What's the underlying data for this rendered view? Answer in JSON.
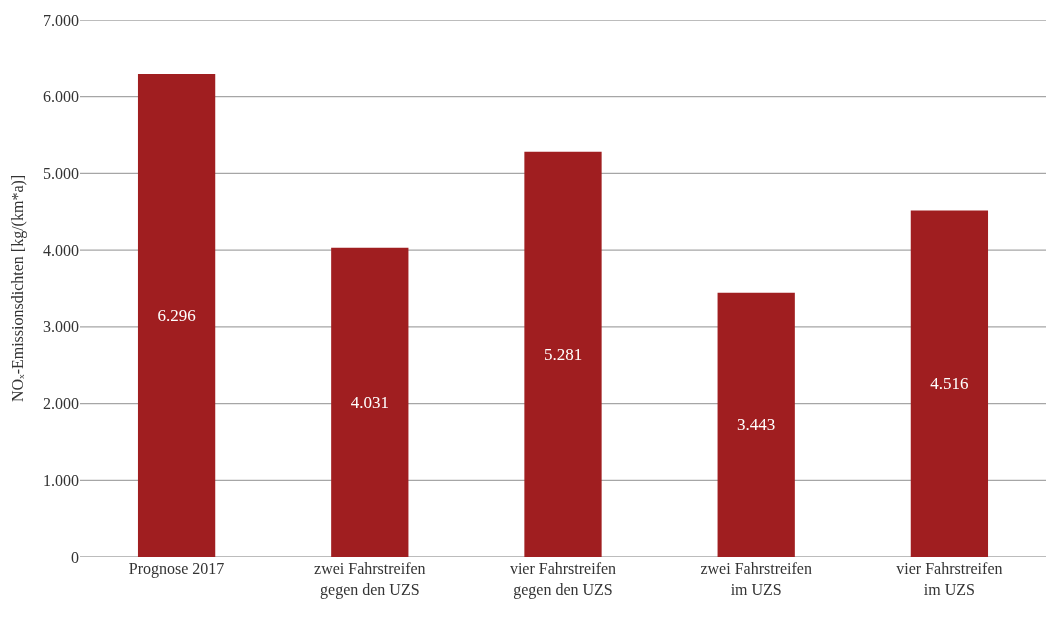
{
  "chart_data": {
    "type": "bar",
    "ylabel": "NOₓ-Emissionsdichten [kg/(km*a)]",
    "categories": [
      "Prognose 2017",
      "zwei Fahrstreifen\ngegen den UZS",
      "vier Fahrstreifen\ngegen den UZS",
      "zwei Fahrstreifen\nim UZS",
      "vier Fahrstreifen\nim UZS"
    ],
    "values": [
      6296,
      4031,
      5281,
      3443,
      4516
    ],
    "value_labels": [
      "6.296",
      "4.031",
      "5.281",
      "3.443",
      "4.516"
    ],
    "color": "#a01e20",
    "ylim": [
      0,
      7000
    ],
    "yticks": [
      {
        "value": 0,
        "label": "0"
      },
      {
        "value": 1000,
        "label": "1.000"
      },
      {
        "value": 2000,
        "label": "2.000"
      },
      {
        "value": 3000,
        "label": "3.000"
      },
      {
        "value": 4000,
        "label": "4.000"
      },
      {
        "value": 5000,
        "label": "5.000"
      },
      {
        "value": 6000,
        "label": "6.000"
      },
      {
        "value": 7000,
        "label": "7.000"
      }
    ],
    "grid": "y"
  }
}
